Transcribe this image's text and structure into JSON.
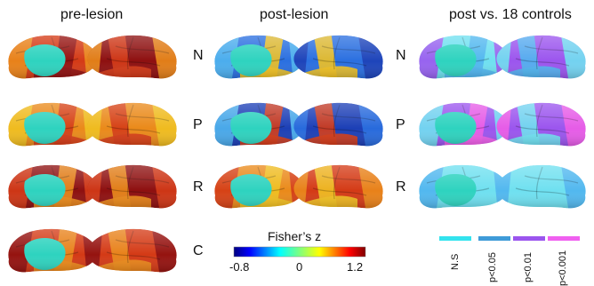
{
  "column_titles": {
    "pre": "pre-lesion",
    "post": "post-lesion",
    "compare": "post vs. 18 controls"
  },
  "row_labels": [
    "N",
    "P",
    "R",
    "C"
  ],
  "colorbar": {
    "title": "Fisher’s z",
    "ticks": [
      "-0.8",
      "0",
      "1.2"
    ]
  },
  "significance_legend": {
    "items": [
      {
        "label": "N.S",
        "color": "#33e3ee"
      },
      {
        "label": "p<0.05",
        "color": "#3f9bd8"
      },
      {
        "label": "p<0.01",
        "color": "#9b55ee"
      },
      {
        "label": "p<0.001",
        "color": "#f060f0"
      }
    ]
  },
  "colors": {
    "lesion": "#2ed3bf",
    "dark_red": "#8e1010",
    "red": "#d43a16",
    "orange": "#ea8a1a",
    "yellow": "#f0c020",
    "deep_blue": "#1c3fb6",
    "blue": "#2a6fe0",
    "cyan": "#4fb4ee",
    "light_cyan": "#6fe0f0",
    "purple": "#9b55ee",
    "magenta": "#ee5de6"
  }
}
